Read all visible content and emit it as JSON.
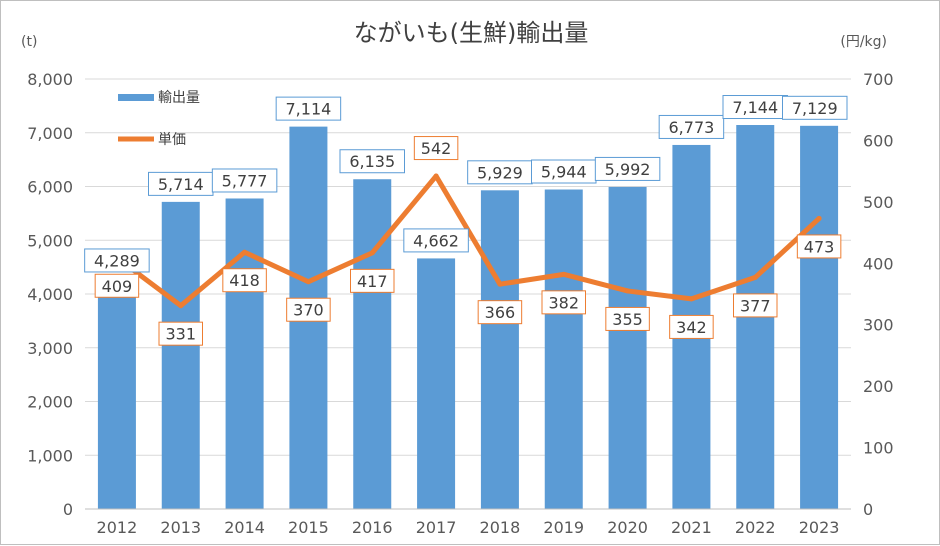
{
  "chart_data": {
    "type": "bar+line",
    "title": "ながいも(生鮮)輸出量",
    "y_left_unit": "(t)",
    "y_right_unit": "(円/kg)",
    "categories": [
      "2012",
      "2013",
      "2014",
      "2015",
      "2016",
      "2017",
      "2018",
      "2019",
      "2020",
      "2021",
      "2022",
      "2023"
    ],
    "series": [
      {
        "name": "輸出量",
        "kind": "bar",
        "axis": "left",
        "color": "#5b9bd5",
        "values": [
          4289,
          5714,
          5777,
          7114,
          6135,
          4662,
          5929,
          5944,
          5992,
          6773,
          7144,
          7129
        ],
        "labels": [
          "4,289",
          "5,714",
          "5,777",
          "7,114",
          "6,135",
          "4,662",
          "5,929",
          "5,944",
          "5,992",
          "6,773",
          "7,144",
          "7,129"
        ]
      },
      {
        "name": "単価",
        "kind": "line",
        "axis": "right",
        "color": "#ed7d31",
        "values": [
          409,
          331,
          418,
          370,
          417,
          542,
          366,
          382,
          355,
          342,
          377,
          473
        ],
        "labels": [
          "409",
          "331",
          "418",
          "370",
          "417",
          "542",
          "366",
          "382",
          "355",
          "342",
          "377",
          "473"
        ]
      }
    ],
    "y_left": {
      "range": [
        0,
        8000
      ],
      "ticks": [
        "0",
        "1,000",
        "2,000",
        "3,000",
        "4,000",
        "5,000",
        "6,000",
        "7,000",
        "8,000"
      ]
    },
    "y_right": {
      "range": [
        0,
        700
      ],
      "ticks": [
        "0",
        "100",
        "200",
        "300",
        "400",
        "500",
        "600",
        "700"
      ]
    },
    "grid": true,
    "legend_position": "top-left"
  }
}
